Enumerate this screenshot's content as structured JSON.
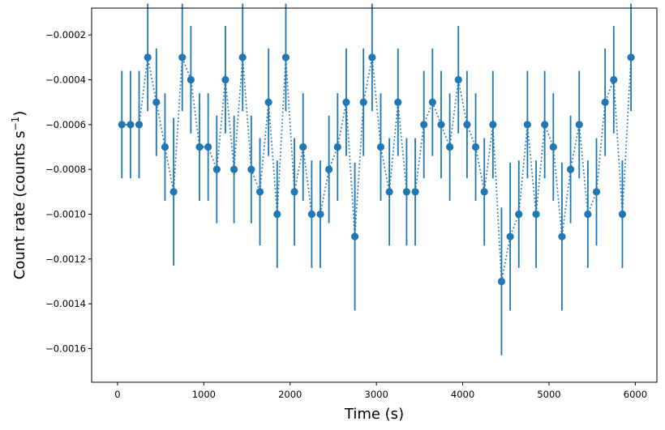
{
  "chart_data": {
    "type": "scatter",
    "title": "",
    "xlabel": "Time (s)",
    "ylabel_main": "Count rate (counts s",
    "ylabel_sup": "−1",
    "ylabel_close": ")",
    "xlim": [
      -300,
      6250
    ],
    "ylim": [
      -0.00175,
      -8e-05
    ],
    "xticks": [
      0,
      1000,
      2000,
      3000,
      4000,
      5000,
      6000
    ],
    "xtick_labels": [
      "0",
      "1000",
      "2000",
      "3000",
      "4000",
      "5000",
      "6000"
    ],
    "yticks": [
      -0.0016,
      -0.0014,
      -0.0012,
      -0.001,
      -0.0008,
      -0.0006,
      -0.0004,
      -0.0002
    ],
    "ytick_labels": [
      "−0.0016",
      "−0.0014",
      "−0.0012",
      "−0.0010",
      "−0.0008",
      "−0.0006",
      "−0.0004",
      "−0.0002"
    ],
    "grid": false,
    "color": "#1f77b4",
    "line_style": "dotted",
    "series": [
      {
        "x": [
          50,
          150,
          250,
          350,
          450,
          550,
          650,
          750,
          850,
          950,
          1050,
          1150,
          1250,
          1350,
          1450,
          1550,
          1650,
          1750,
          1850,
          1950,
          2050,
          2150,
          2250,
          2350,
          2450,
          2550,
          2650,
          2750,
          2850,
          2950,
          3050,
          3150,
          3250,
          3350,
          3450,
          3550,
          3650,
          3750,
          3850,
          3950,
          4050,
          4150,
          4250,
          4350,
          4450,
          4550,
          4650,
          4750,
          4850,
          4950,
          5050,
          5150,
          5250,
          5350,
          5450,
          5550,
          5650,
          5750,
          5850,
          5950
        ],
        "y": [
          -0.0006,
          -0.0006,
          -0.0006,
          -0.0003,
          -0.0005,
          -0.0007,
          -0.0009,
          -0.0003,
          -0.0004,
          -0.0007,
          -0.0007,
          -0.0008,
          -0.0004,
          -0.0008,
          -0.0003,
          -0.0008,
          -0.0009,
          -0.0005,
          -0.001,
          -0.0003,
          -0.0009,
          -0.0007,
          -0.001,
          -0.001,
          -0.0008,
          -0.0007,
          -0.0005,
          -0.0011,
          -0.0005,
          -0.0003,
          -0.0007,
          -0.0009,
          -0.0005,
          -0.0009,
          -0.0009,
          -0.0006,
          -0.0005,
          -0.0006,
          -0.0007,
          -0.0004,
          -0.0006,
          -0.0007,
          -0.0009,
          -0.0006,
          -0.0013,
          -0.0011,
          -0.001,
          -0.0006,
          -0.001,
          -0.0006,
          -0.0007,
          -0.0011,
          -0.0008,
          -0.0006,
          -0.001,
          -0.0009,
          -0.0005,
          -0.0004,
          -0.001,
          -0.0003
        ],
        "yerr": 0.00024,
        "yerr_large": 0.00033,
        "yerr_large_indices": [
          6,
          27,
          44,
          45,
          51
        ]
      }
    ]
  }
}
